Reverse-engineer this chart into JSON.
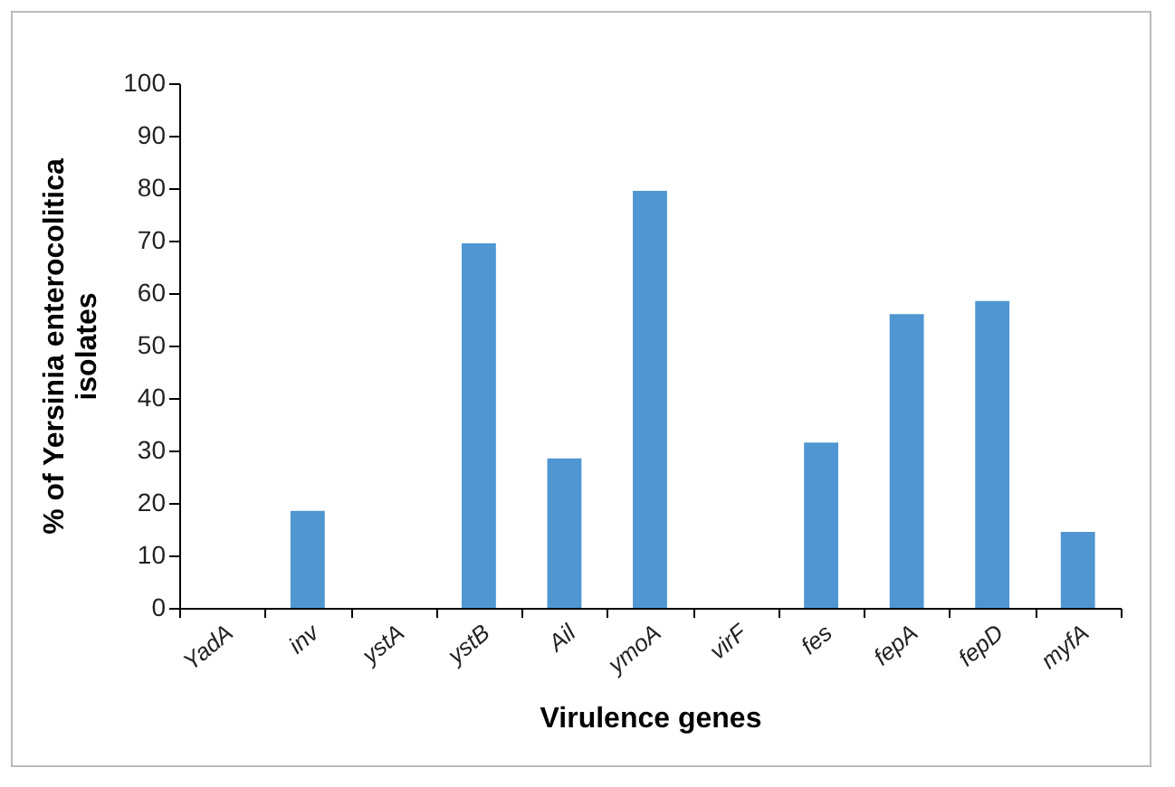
{
  "chart_data": {
    "type": "bar",
    "xlabel": "Virulence genes",
    "ylabel": "% of Yersinia enterocolitica isolates",
    "categories": [
      "YadA",
      "inv",
      "ystA",
      "ystB",
      "Ail",
      "ymoA",
      "virF",
      "fes",
      "fepA",
      "fepD",
      "myfA"
    ],
    "values": [
      0,
      18.5,
      0,
      69.5,
      28.5,
      79.5,
      0,
      31.5,
      56,
      58.5,
      14.5
    ],
    "color": "#4f96d2",
    "ylim": [
      0,
      100
    ],
    "yticks": [
      0,
      10,
      20,
      30,
      40,
      50,
      60,
      70,
      80,
      90,
      100
    ],
    "grid": false
  }
}
